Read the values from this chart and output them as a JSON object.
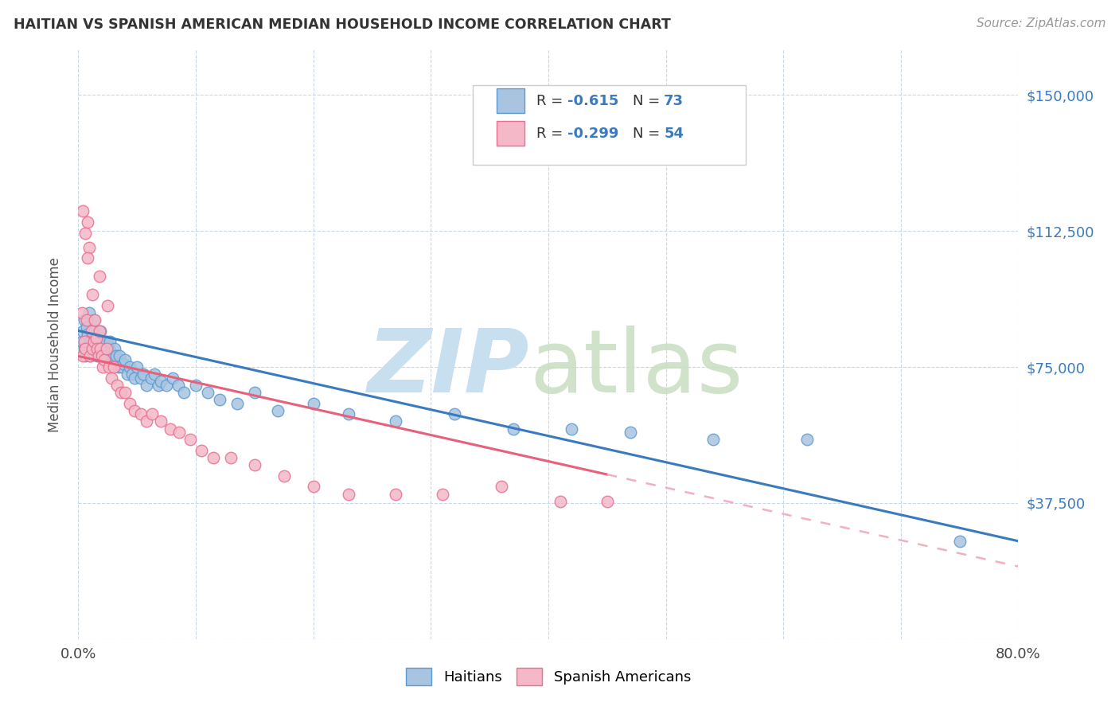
{
  "title": "HAITIAN VS SPANISH AMERICAN MEDIAN HOUSEHOLD INCOME CORRELATION CHART",
  "source": "Source: ZipAtlas.com",
  "ylabel": "Median Household Income",
  "xlim": [
    0.0,
    0.8
  ],
  "ylim": [
    0,
    162500
  ],
  "yticks": [
    0,
    37500,
    75000,
    112500,
    150000
  ],
  "ytick_labels": [
    "",
    "$37,500",
    "$75,000",
    "$112,500",
    "$150,000"
  ],
  "xticks": [
    0.0,
    0.1,
    0.2,
    0.3,
    0.4,
    0.5,
    0.6,
    0.7,
    0.8
  ],
  "haitians_fill": "#a8c4e0",
  "haitians_edge": "#5b9bd5",
  "spanish_fill": "#f4b8c8",
  "spanish_edge": "#e87090",
  "haitians_line_color": "#3a7abf",
  "spanish_line_color": "#e8607a",
  "spanish_line_dashed_color": "#f0b0be",
  "watermark_zip_color": "#c8dff0",
  "watermark_atlas_color": "#c8ddc0",
  "haitian_x": [
    0.003,
    0.004,
    0.005,
    0.005,
    0.006,
    0.007,
    0.008,
    0.009,
    0.01,
    0.01,
    0.011,
    0.012,
    0.012,
    0.013,
    0.014,
    0.014,
    0.015,
    0.015,
    0.016,
    0.016,
    0.017,
    0.017,
    0.018,
    0.019,
    0.02,
    0.021,
    0.022,
    0.023,
    0.024,
    0.025,
    0.026,
    0.027,
    0.028,
    0.03,
    0.031,
    0.032,
    0.034,
    0.035,
    0.037,
    0.038,
    0.04,
    0.042,
    0.044,
    0.046,
    0.048,
    0.05,
    0.053,
    0.055,
    0.058,
    0.062,
    0.065,
    0.068,
    0.07,
    0.075,
    0.08,
    0.085,
    0.09,
    0.1,
    0.11,
    0.12,
    0.135,
    0.15,
    0.17,
    0.2,
    0.23,
    0.27,
    0.32,
    0.37,
    0.42,
    0.47,
    0.54,
    0.62,
    0.75
  ],
  "haitian_y": [
    82000,
    85000,
    80000,
    88000,
    78000,
    86000,
    84000,
    90000,
    82000,
    78000,
    83000,
    85000,
    80000,
    88000,
    82000,
    85000,
    80000,
    84000,
    82000,
    78000,
    83000,
    80000,
    82000,
    85000,
    80000,
    82000,
    78000,
    80000,
    82000,
    78000,
    80000,
    82000,
    77000,
    78000,
    80000,
    78000,
    75000,
    78000,
    75000,
    76000,
    77000,
    73000,
    75000,
    73000,
    72000,
    75000,
    72000,
    73000,
    70000,
    72000,
    73000,
    70000,
    71000,
    70000,
    72000,
    70000,
    68000,
    70000,
    68000,
    66000,
    65000,
    68000,
    63000,
    65000,
    62000,
    60000,
    62000,
    58000,
    58000,
    57000,
    55000,
    55000,
    27000
  ],
  "spanish_x": [
    0.003,
    0.004,
    0.005,
    0.006,
    0.007,
    0.008,
    0.009,
    0.01,
    0.011,
    0.012,
    0.013,
    0.014,
    0.015,
    0.016,
    0.017,
    0.018,
    0.019,
    0.02,
    0.021,
    0.022,
    0.024,
    0.026,
    0.028,
    0.03,
    0.033,
    0.036,
    0.04,
    0.044,
    0.048,
    0.053,
    0.058,
    0.063,
    0.07,
    0.078,
    0.086,
    0.095,
    0.105,
    0.115,
    0.13,
    0.15,
    0.175,
    0.2,
    0.23,
    0.27,
    0.31,
    0.36,
    0.41,
    0.45,
    0.004,
    0.006,
    0.008,
    0.012,
    0.018,
    0.025
  ],
  "spanish_y": [
    90000,
    78000,
    82000,
    80000,
    88000,
    115000,
    108000,
    78000,
    85000,
    80000,
    82000,
    88000,
    83000,
    80000,
    78000,
    85000,
    80000,
    78000,
    75000,
    77000,
    80000,
    75000,
    72000,
    75000,
    70000,
    68000,
    68000,
    65000,
    63000,
    62000,
    60000,
    62000,
    60000,
    58000,
    57000,
    55000,
    52000,
    50000,
    50000,
    48000,
    45000,
    42000,
    40000,
    40000,
    40000,
    42000,
    38000,
    38000,
    118000,
    112000,
    105000,
    95000,
    100000,
    92000
  ],
  "haitian_line_x0": 0.0,
  "haitian_line_x1": 0.8,
  "haitian_line_y0": 85000,
  "haitian_line_y1": 27000,
  "spanish_line_x0": 0.0,
  "spanish_line_xsolid": 0.45,
  "spanish_line_x1": 0.8,
  "spanish_line_y0": 78000,
  "spanish_line_y1": 20000
}
